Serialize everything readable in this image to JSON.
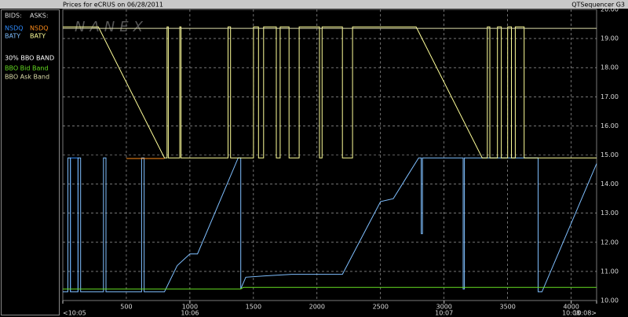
{
  "header": {
    "title": "Prices for  eCRUS  on  06/28/2011",
    "app": "QTSequencer G3"
  },
  "legend_panel": {
    "bids_label": "BIDS:",
    "asks_label": "ASKS:",
    "band_heading": "30% BBO BAND"
  },
  "chart_data": {
    "type": "line",
    "watermark": "NANEX",
    "xlim": [
      0,
      4200
    ],
    "xticks": [
      500,
      1000,
      1500,
      2000,
      2500,
      3000,
      3500,
      4000
    ],
    "time_ticks": [
      {
        "value": 0,
        "label": "<10:05"
      },
      {
        "value": 1000,
        "label": "10:06"
      },
      {
        "value": 3000,
        "label": "10:07"
      },
      {
        "value": 4000,
        "label": "10:08"
      },
      {
        "value": 4200,
        "label": "10:08>"
      }
    ],
    "ylim": [
      10,
      20
    ],
    "yticks": [
      {
        "value": 10,
        "label": "10.00"
      },
      {
        "value": 11,
        "label": "11.00"
      },
      {
        "value": 12,
        "label": "12.00"
      },
      {
        "value": 13,
        "label": "13.00"
      },
      {
        "value": 14,
        "label": "14.00"
      },
      {
        "value": 15,
        "label": "15.00"
      },
      {
        "value": 16,
        "label": "16.00"
      },
      {
        "value": 17,
        "label": "17.00"
      },
      {
        "value": 18,
        "label": "18.00"
      },
      {
        "value": 19,
        "label": "19.00"
      },
      {
        "value": 20,
        "label": "20.00"
      }
    ],
    "grid": true,
    "series": [
      {
        "name": "NSDQ",
        "side": "bid",
        "color": "#2f8cff",
        "x": [
          60,
          60,
          120,
          120
        ],
        "values": [
          10.3,
          14.9,
          14.9,
          10.3
        ]
      },
      {
        "name": "BATY",
        "side": "bid",
        "color": "#7fbfff",
        "x": [
          0,
          40,
          40,
          60,
          60,
          120,
          120,
          140,
          140,
          320,
          320,
          340,
          340,
          620,
          620,
          640,
          640,
          800,
          900,
          1000,
          1060,
          1380,
          1400,
          1400,
          1440,
          1600,
          1800,
          2200,
          2380,
          2500,
          2600,
          2700,
          2800,
          2820,
          2820,
          2830,
          2830,
          3150,
          3150,
          3160,
          3160,
          3740,
          3740,
          3770,
          4200
        ],
        "values": [
          10.3,
          10.3,
          14.9,
          14.9,
          10.3,
          10.3,
          14.9,
          14.9,
          10.3,
          10.3,
          14.9,
          14.9,
          10.3,
          10.3,
          14.9,
          14.9,
          10.3,
          10.3,
          11.2,
          11.6,
          11.6,
          14.9,
          14.9,
          10.4,
          10.8,
          10.85,
          10.9,
          10.9,
          12.4,
          13.4,
          13.5,
          14.2,
          14.9,
          14.9,
          12.3,
          12.3,
          14.9,
          14.9,
          10.4,
          10.4,
          14.9,
          14.9,
          10.3,
          10.3,
          14.7
        ]
      },
      {
        "name": "NSDQ",
        "side": "ask",
        "color": "#ff8c1a",
        "x": [
          500,
          800
        ],
        "values": [
          14.88,
          14.88
        ]
      },
      {
        "name": "BATY",
        "side": "ask",
        "color": "#ffff99",
        "x": [
          0,
          280,
          800,
          820,
          820,
          830,
          830,
          920,
          920,
          930,
          930,
          1300,
          1300,
          1320,
          1320,
          1500,
          1500,
          1540,
          1540,
          1580,
          1580,
          1680,
          1680,
          1710,
          1710,
          1780,
          1780,
          1860,
          1860,
          2020,
          2020,
          2040,
          2040,
          2200,
          2200,
          2280,
          2280,
          2780,
          3300,
          3340,
          3340,
          3360,
          3360,
          3420,
          3420,
          3450,
          3450,
          3500,
          3500,
          3530,
          3530,
          3560,
          3560,
          3630,
          3630,
          4200
        ],
        "values": [
          19.4,
          19.4,
          14.9,
          14.9,
          19.4,
          19.4,
          14.9,
          14.9,
          19.4,
          19.4,
          14.9,
          14.9,
          19.4,
          19.4,
          14.9,
          14.9,
          19.4,
          19.4,
          14.9,
          14.9,
          19.4,
          19.4,
          14.9,
          14.9,
          19.4,
          19.4,
          14.9,
          14.9,
          19.4,
          19.4,
          14.9,
          14.9,
          19.4,
          19.4,
          14.9,
          14.9,
          19.4,
          19.4,
          14.9,
          14.9,
          19.4,
          19.4,
          14.9,
          14.9,
          19.4,
          19.4,
          14.9,
          14.9,
          19.4,
          19.4,
          14.9,
          14.9,
          19.4,
          19.4,
          14.9,
          14.9
        ]
      },
      {
        "name": "BBO Bid Band",
        "color": "#66dd22",
        "x": [
          0,
          1400,
          1420,
          4200
        ],
        "values": [
          10.4,
          10.4,
          10.45,
          10.45
        ]
      },
      {
        "name": "BBO Ask Band",
        "color": "#ddddaa",
        "x": [
          0,
          4200
        ],
        "values": [
          19.35,
          19.35
        ]
      }
    ]
  }
}
